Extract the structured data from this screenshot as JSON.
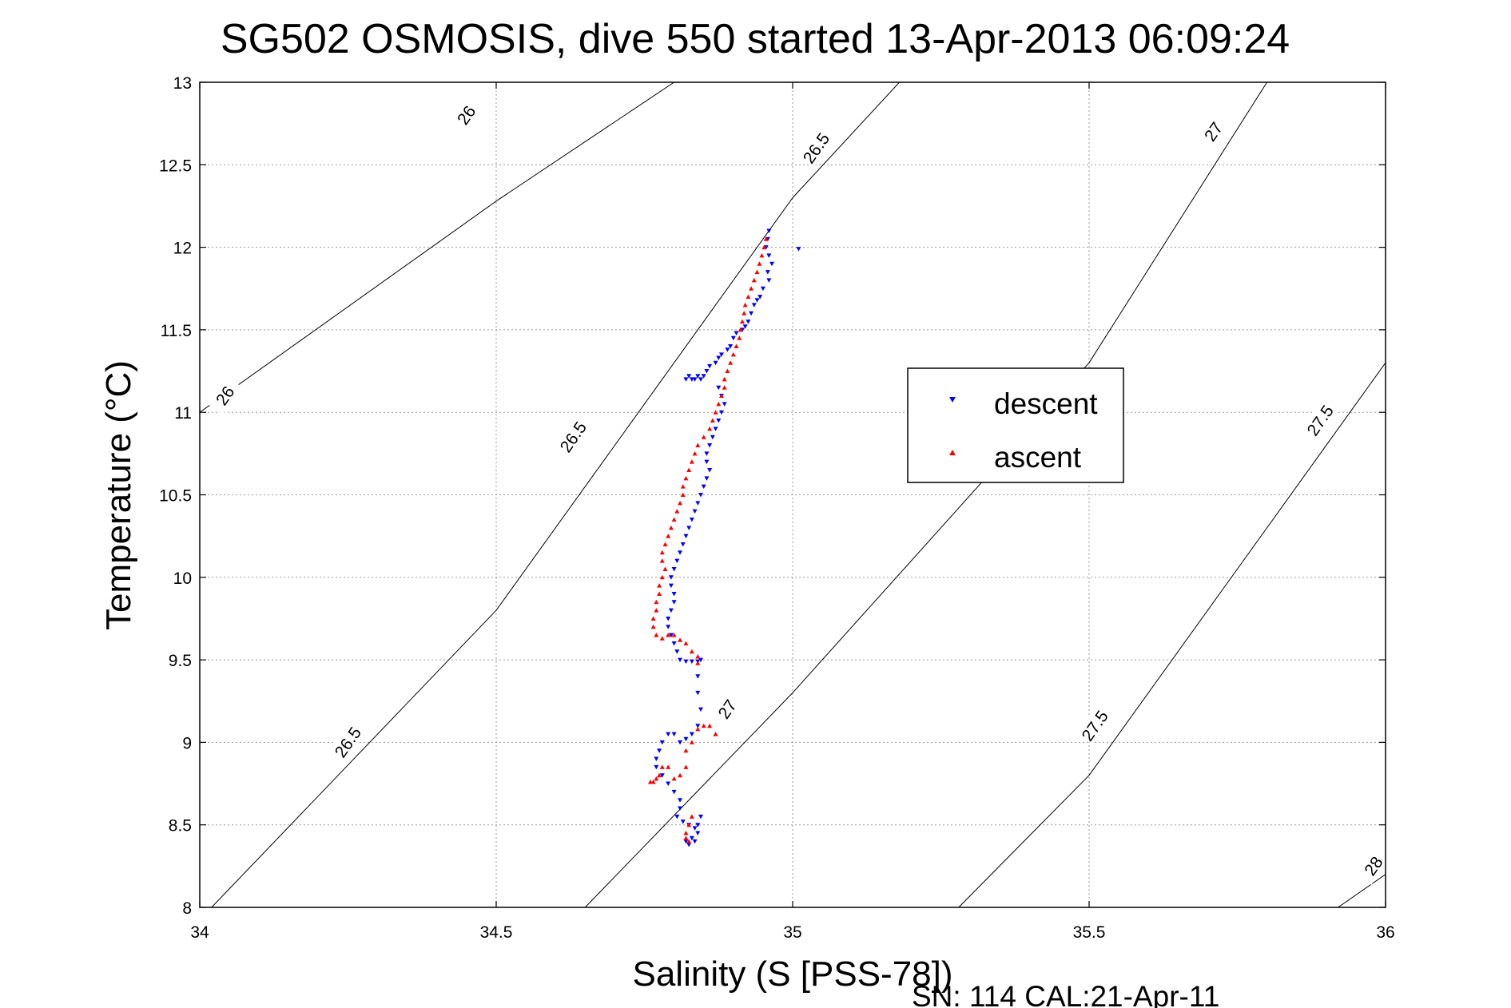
{
  "chart_data": {
    "type": "scatter",
    "title": "SG502 OSMOSIS, dive 550 started 13-Apr-2013 06:09:24",
    "xlabel": "Salinity (S [PSS-78])",
    "ylabel": "Temperature (°C)",
    "xlim": [
      34,
      36
    ],
    "ylim": [
      8,
      13
    ],
    "x_ticks": [
      34,
      34.5,
      35,
      35.5,
      36
    ],
    "x_tick_labels": [
      "34",
      "34.5",
      "35",
      "35.5",
      "36"
    ],
    "y_ticks": [
      8,
      8.5,
      9,
      9.5,
      10,
      10.5,
      11,
      11.5,
      12,
      12.5,
      13
    ],
    "y_tick_labels": [
      "8",
      "8.5",
      "9",
      "9.5",
      "10",
      "10.5",
      "11",
      "11.5",
      "12",
      "12.5",
      "13"
    ],
    "grid": true,
    "legend_position": "right-center",
    "footer": "SN: 114  CAL:21-Apr-11",
    "density_contours": [
      {
        "level": 26,
        "label": "26",
        "points": [
          [
            34.0,
            11.0
          ],
          [
            34.5,
            12.28
          ],
          [
            34.8,
            13.0
          ]
        ],
        "label_points": [
          [
            34.043,
            11.1
          ],
          [
            34.45,
            12.8
          ]
        ]
      },
      {
        "level": 26.5,
        "label": "26.5",
        "points": [
          [
            34.02,
            8.0
          ],
          [
            34.5,
            9.8
          ],
          [
            35.0,
            12.3
          ],
          [
            35.18,
            13.0
          ]
        ],
        "label_points": [
          [
            34.25,
            9.0
          ],
          [
            34.63,
            10.85
          ],
          [
            35.04,
            12.6
          ]
        ]
      },
      {
        "level": 27,
        "label": "27",
        "points": [
          [
            34.65,
            8.0
          ],
          [
            35.0,
            9.3
          ],
          [
            35.5,
            11.3
          ],
          [
            35.8,
            13.0
          ]
        ],
        "label_points": [
          [
            34.89,
            9.2
          ],
          [
            35.71,
            12.7
          ]
        ]
      },
      {
        "level": 27.5,
        "label": "27.5",
        "points": [
          [
            35.28,
            8.0
          ],
          [
            35.5,
            8.8
          ],
          [
            36.0,
            11.3
          ]
        ],
        "label_points": [
          [
            35.51,
            9.1
          ],
          [
            35.89,
            10.95
          ]
        ]
      },
      {
        "level": 28,
        "label": "28",
        "points": [
          [
            35.92,
            8.0
          ],
          [
            36.0,
            8.2
          ]
        ],
        "label_points": [
          [
            35.98,
            8.25
          ]
        ]
      }
    ],
    "series": [
      {
        "name": "descent",
        "color": "#0000ff",
        "marker": "triangle-down",
        "points": [
          [
            34.96,
            12.1
          ],
          [
            34.958,
            12.05
          ],
          [
            34.955,
            12.0
          ],
          [
            34.96,
            11.95
          ],
          [
            34.965,
            11.9
          ],
          [
            34.958,
            11.85
          ],
          [
            34.96,
            11.8
          ],
          [
            34.95,
            11.75
          ],
          [
            34.945,
            11.7
          ],
          [
            34.94,
            11.68
          ],
          [
            34.935,
            11.65
          ],
          [
            34.93,
            11.6
          ],
          [
            34.925,
            11.55
          ],
          [
            34.92,
            11.52
          ],
          [
            34.915,
            11.5
          ],
          [
            34.905,
            11.48
          ],
          [
            34.9,
            11.45
          ],
          [
            34.895,
            11.4
          ],
          [
            34.89,
            11.38
          ],
          [
            34.88,
            11.35
          ],
          [
            34.875,
            11.33
          ],
          [
            34.87,
            11.3
          ],
          [
            34.86,
            11.28
          ],
          [
            34.855,
            11.25
          ],
          [
            34.85,
            11.22
          ],
          [
            34.845,
            11.2
          ],
          [
            34.84,
            11.22
          ],
          [
            34.835,
            11.2
          ],
          [
            34.83,
            11.2
          ],
          [
            34.825,
            11.22
          ],
          [
            34.82,
            11.2
          ],
          [
            34.875,
            11.15
          ],
          [
            34.88,
            11.1
          ],
          [
            34.885,
            11.05
          ],
          [
            34.88,
            11.0
          ],
          [
            34.875,
            10.95
          ],
          [
            34.87,
            10.9
          ],
          [
            34.865,
            10.85
          ],
          [
            34.86,
            10.8
          ],
          [
            34.855,
            10.75
          ],
          [
            34.855,
            10.7
          ],
          [
            34.86,
            10.65
          ],
          [
            34.855,
            10.6
          ],
          [
            34.85,
            10.55
          ],
          [
            34.845,
            10.5
          ],
          [
            34.84,
            10.45
          ],
          [
            34.835,
            10.4
          ],
          [
            34.83,
            10.35
          ],
          [
            34.825,
            10.3
          ],
          [
            34.82,
            10.25
          ],
          [
            34.815,
            10.2
          ],
          [
            34.81,
            10.15
          ],
          [
            34.805,
            10.1
          ],
          [
            34.8,
            10.05
          ],
          [
            34.795,
            10.0
          ],
          [
            34.795,
            9.95
          ],
          [
            34.8,
            9.9
          ],
          [
            34.8,
            9.85
          ],
          [
            34.795,
            9.8
          ],
          [
            34.79,
            9.75
          ],
          [
            34.79,
            9.7
          ],
          [
            34.795,
            9.65
          ],
          [
            34.8,
            9.6
          ],
          [
            34.805,
            9.55
          ],
          [
            34.81,
            9.5
          ],
          [
            34.82,
            9.49
          ],
          [
            34.83,
            9.49
          ],
          [
            34.84,
            9.49
          ],
          [
            34.845,
            9.5
          ],
          [
            34.84,
            9.4
          ],
          [
            34.84,
            9.3
          ],
          [
            34.845,
            9.2
          ],
          [
            34.84,
            9.1
          ],
          [
            34.83,
            9.05
          ],
          [
            34.82,
            9.02
          ],
          [
            34.81,
            9.0
          ],
          [
            34.8,
            9.05
          ],
          [
            34.79,
            9.05
          ],
          [
            34.78,
            9.0
          ],
          [
            34.775,
            8.95
          ],
          [
            34.77,
            8.9
          ],
          [
            34.77,
            8.85
          ],
          [
            34.78,
            8.8
          ],
          [
            34.79,
            8.75
          ],
          [
            34.8,
            8.7
          ],
          [
            34.81,
            8.65
          ],
          [
            34.81,
            8.6
          ],
          [
            34.805,
            8.55
          ],
          [
            34.815,
            8.52
          ],
          [
            34.825,
            8.5
          ],
          [
            34.835,
            8.48
          ],
          [
            34.84,
            8.45
          ],
          [
            34.83,
            8.42
          ],
          [
            34.82,
            8.4
          ],
          [
            34.825,
            8.38
          ],
          [
            34.835,
            8.4
          ],
          [
            34.84,
            8.5
          ],
          [
            34.845,
            8.55
          ],
          [
            35.01,
            11.99
          ]
        ]
      },
      {
        "name": "ascent",
        "color": "#ff0000",
        "marker": "triangle-up",
        "points": [
          [
            34.955,
            12.05
          ],
          [
            34.952,
            12.0
          ],
          [
            34.948,
            11.95
          ],
          [
            34.944,
            11.9
          ],
          [
            34.94,
            11.85
          ],
          [
            34.935,
            11.8
          ],
          [
            34.93,
            11.75
          ],
          [
            34.925,
            11.7
          ],
          [
            34.92,
            11.65
          ],
          [
            34.918,
            11.6
          ],
          [
            34.915,
            11.55
          ],
          [
            34.912,
            11.5
          ],
          [
            34.91,
            11.45
          ],
          [
            34.905,
            11.4
          ],
          [
            34.9,
            11.35
          ],
          [
            34.895,
            11.3
          ],
          [
            34.89,
            11.25
          ],
          [
            34.885,
            11.2
          ],
          [
            34.885,
            11.15
          ],
          [
            34.88,
            11.1
          ],
          [
            34.875,
            11.05
          ],
          [
            34.87,
            11.0
          ],
          [
            34.865,
            10.95
          ],
          [
            34.86,
            10.9
          ],
          [
            34.85,
            10.85
          ],
          [
            34.84,
            10.8
          ],
          [
            34.835,
            10.75
          ],
          [
            34.83,
            10.7
          ],
          [
            34.825,
            10.65
          ],
          [
            34.82,
            10.6
          ],
          [
            34.815,
            10.55
          ],
          [
            34.815,
            10.5
          ],
          [
            34.81,
            10.45
          ],
          [
            34.805,
            10.4
          ],
          [
            34.8,
            10.35
          ],
          [
            34.795,
            10.3
          ],
          [
            34.79,
            10.25
          ],
          [
            34.785,
            10.2
          ],
          [
            34.78,
            10.15
          ],
          [
            34.78,
            10.1
          ],
          [
            34.785,
            10.05
          ],
          [
            34.78,
            10.0
          ],
          [
            34.775,
            9.95
          ],
          [
            34.775,
            9.9
          ],
          [
            34.77,
            9.85
          ],
          [
            34.77,
            9.8
          ],
          [
            34.765,
            9.75
          ],
          [
            34.765,
            9.7
          ],
          [
            34.77,
            9.65
          ],
          [
            34.78,
            9.63
          ],
          [
            34.79,
            9.65
          ],
          [
            34.8,
            9.65
          ],
          [
            34.81,
            9.62
          ],
          [
            34.82,
            9.6
          ],
          [
            34.83,
            9.55
          ],
          [
            34.84,
            9.52
          ],
          [
            34.84,
            9.48
          ],
          [
            34.85,
            9.1
          ],
          [
            34.86,
            9.1
          ],
          [
            34.87,
            9.05
          ],
          [
            34.84,
            9.08
          ],
          [
            34.83,
            9.0
          ],
          [
            34.82,
            8.95
          ],
          [
            34.82,
            8.85
          ],
          [
            34.81,
            8.8
          ],
          [
            34.8,
            8.78
          ],
          [
            34.79,
            8.85
          ],
          [
            34.78,
            8.85
          ],
          [
            34.775,
            8.8
          ],
          [
            34.77,
            8.78
          ],
          [
            34.765,
            8.76
          ],
          [
            34.76,
            8.76
          ],
          [
            34.83,
            8.55
          ],
          [
            34.825,
            8.5
          ],
          [
            34.82,
            8.45
          ],
          [
            34.82,
            8.42
          ],
          [
            34.825,
            8.4
          ]
        ]
      }
    ]
  },
  "legend": {
    "items": [
      {
        "label": "descent",
        "color": "#0000ff",
        "marker": "triangle-down"
      },
      {
        "label": "ascent",
        "color": "#ff0000",
        "marker": "triangle-up"
      }
    ]
  }
}
